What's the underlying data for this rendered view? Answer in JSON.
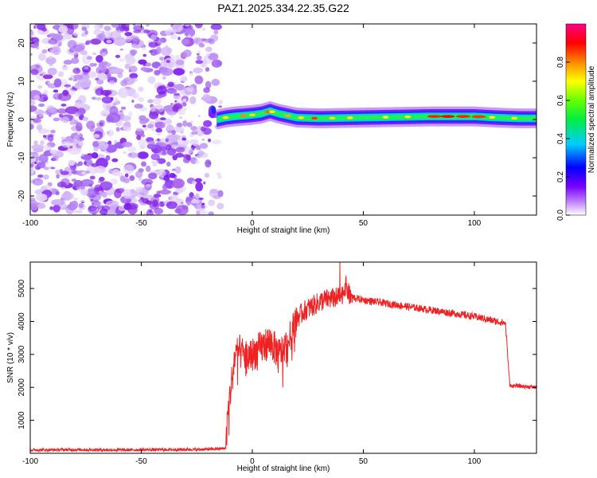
{
  "title": "PAZ1.2025.334.22.35.G22",
  "colors": {
    "snr_line": "#ee2222",
    "background": "#ffffff",
    "noise_fill": "#8a2be2",
    "colormap": [
      "#d8d8f0",
      "#7700ff",
      "#0000ff",
      "#00ccff",
      "#00ff66",
      "#ffff00",
      "#ff6600",
      "#ff0000",
      "#ff0088"
    ]
  },
  "chart_data": [
    {
      "type": "heatmap",
      "name": "spectrogram",
      "title": "PAZ1.2025.334.22.35.G22",
      "xlabel": "Height of straight line (km)",
      "ylabel": "Frequency (Hz)",
      "xlim": [
        -100,
        128
      ],
      "ylim": [
        -25,
        25
      ],
      "xticks": [
        "-100",
        "-50",
        "0",
        "50",
        "100"
      ],
      "xtick_values": [
        -100,
        -50,
        0,
        50,
        100
      ],
      "yticks": [
        "-20",
        "-10",
        "0",
        "10",
        "20"
      ],
      "ytick_values": [
        -20,
        -10,
        0,
        10,
        20
      ],
      "noise_region_x": [
        -100,
        -18
      ],
      "signal_start_x": -16,
      "signal_track": {
        "x": [
          -16,
          -12,
          -8,
          -4,
          0,
          4,
          8,
          12,
          16,
          20,
          30,
          40,
          50,
          60,
          70,
          80,
          90,
          100,
          110,
          120,
          128
        ],
        "frequency": [
          0,
          0.5,
          0.8,
          1.0,
          1.2,
          1.5,
          2.2,
          1.5,
          1.0,
          0.5,
          0.3,
          0.4,
          0.5,
          0.6,
          0.7,
          0.8,
          0.8,
          0.8,
          0.5,
          0.3,
          0.3
        ]
      },
      "colorbar": {
        "label": "Normalized spectral amplitude",
        "range": [
          0,
          1
        ],
        "ticks": [
          "0.0",
          "0.2",
          "0.4",
          "0.6",
          "0.8"
        ],
        "tick_values": [
          0.0,
          0.2,
          0.4,
          0.6,
          0.8
        ]
      }
    },
    {
      "type": "line",
      "name": "snr",
      "xlabel": "Height of straight line (km)",
      "ylabel": "SNR (10 * v/v)",
      "xlim": [
        -100,
        128
      ],
      "ylim": [
        0,
        5800
      ],
      "xticks": [
        "-100",
        "-50",
        "0",
        "50",
        "100"
      ],
      "xtick_values": [
        -100,
        -50,
        0,
        50,
        100
      ],
      "yticks": [
        "1000",
        "2000",
        "3000",
        "4000",
        "5000"
      ],
      "ytick_values": [
        1000,
        2000,
        3000,
        4000,
        5000
      ],
      "series": [
        {
          "name": "SNR",
          "x": [
            -100,
            -80,
            -60,
            -40,
            -20,
            -12,
            -11,
            -10,
            -8,
            -6,
            -4,
            -2,
            0,
            4,
            8,
            12,
            16,
            20,
            24,
            28,
            32,
            36,
            40,
            42,
            44,
            50,
            60,
            70,
            80,
            90,
            100,
            110,
            114,
            116,
            118,
            128
          ],
          "values": [
            100,
            110,
            100,
            110,
            120,
            150,
            1200,
            1800,
            2900,
            3100,
            3000,
            2900,
            3000,
            3200,
            3400,
            3000,
            3300,
            4100,
            4350,
            4500,
            4650,
            4700,
            4750,
            5100,
            4750,
            4650,
            4550,
            4450,
            4350,
            4250,
            4150,
            4000,
            3950,
            2050,
            2050,
            2000
          ]
        }
      ]
    }
  ]
}
